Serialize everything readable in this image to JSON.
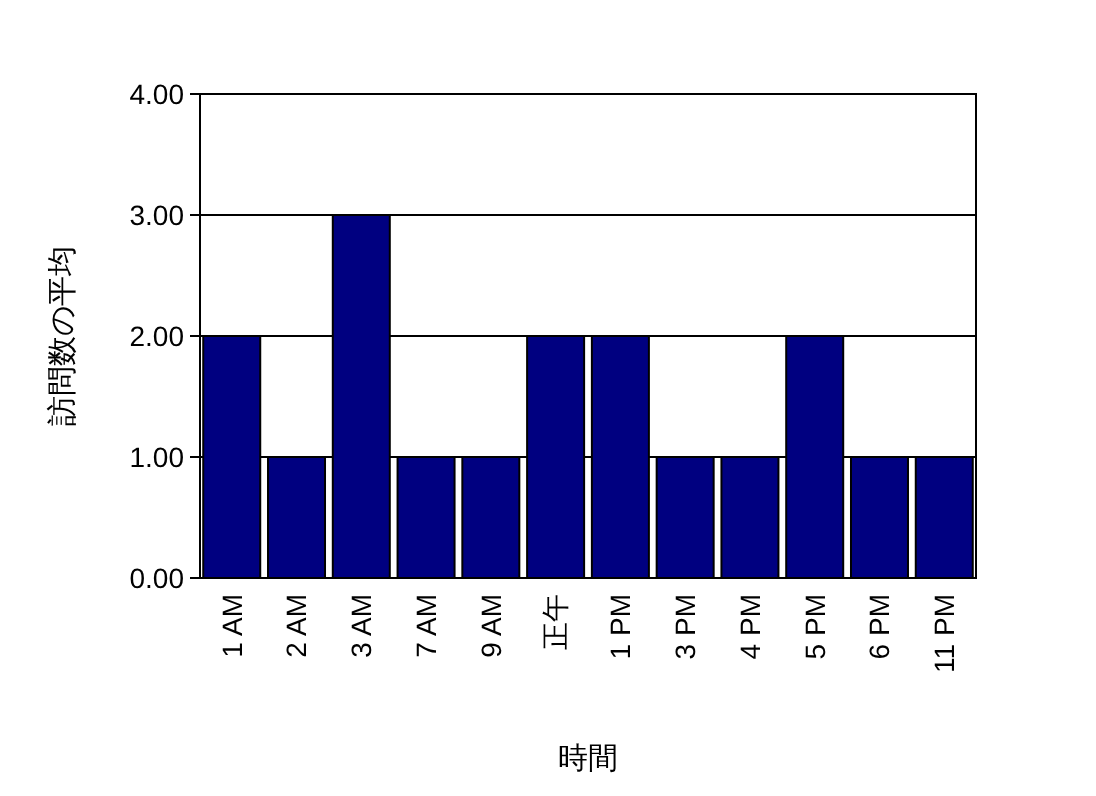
{
  "chart_data": {
    "type": "bar",
    "xlabel": "時間",
    "ylabel": "訪問数の平均",
    "categories": [
      "1 AM",
      "2 AM",
      "3 AM",
      "7 AM",
      "9 AM",
      "正午",
      "1 PM",
      "3 PM",
      "4 PM",
      "5 PM",
      "6 PM",
      "11 PM"
    ],
    "values": [
      2,
      1,
      3,
      1,
      1,
      2,
      2,
      1,
      1,
      2,
      1,
      1
    ],
    "color": "#000080",
    "ylim": [
      0,
      4
    ],
    "yticks": [
      {
        "value": 0,
        "label": "0.00"
      },
      {
        "value": 1,
        "label": "1.00"
      },
      {
        "value": 2,
        "label": "2.00"
      },
      {
        "value": 3,
        "label": "3.00"
      },
      {
        "value": 4,
        "label": "4.00"
      }
    ],
    "grid": "y"
  }
}
